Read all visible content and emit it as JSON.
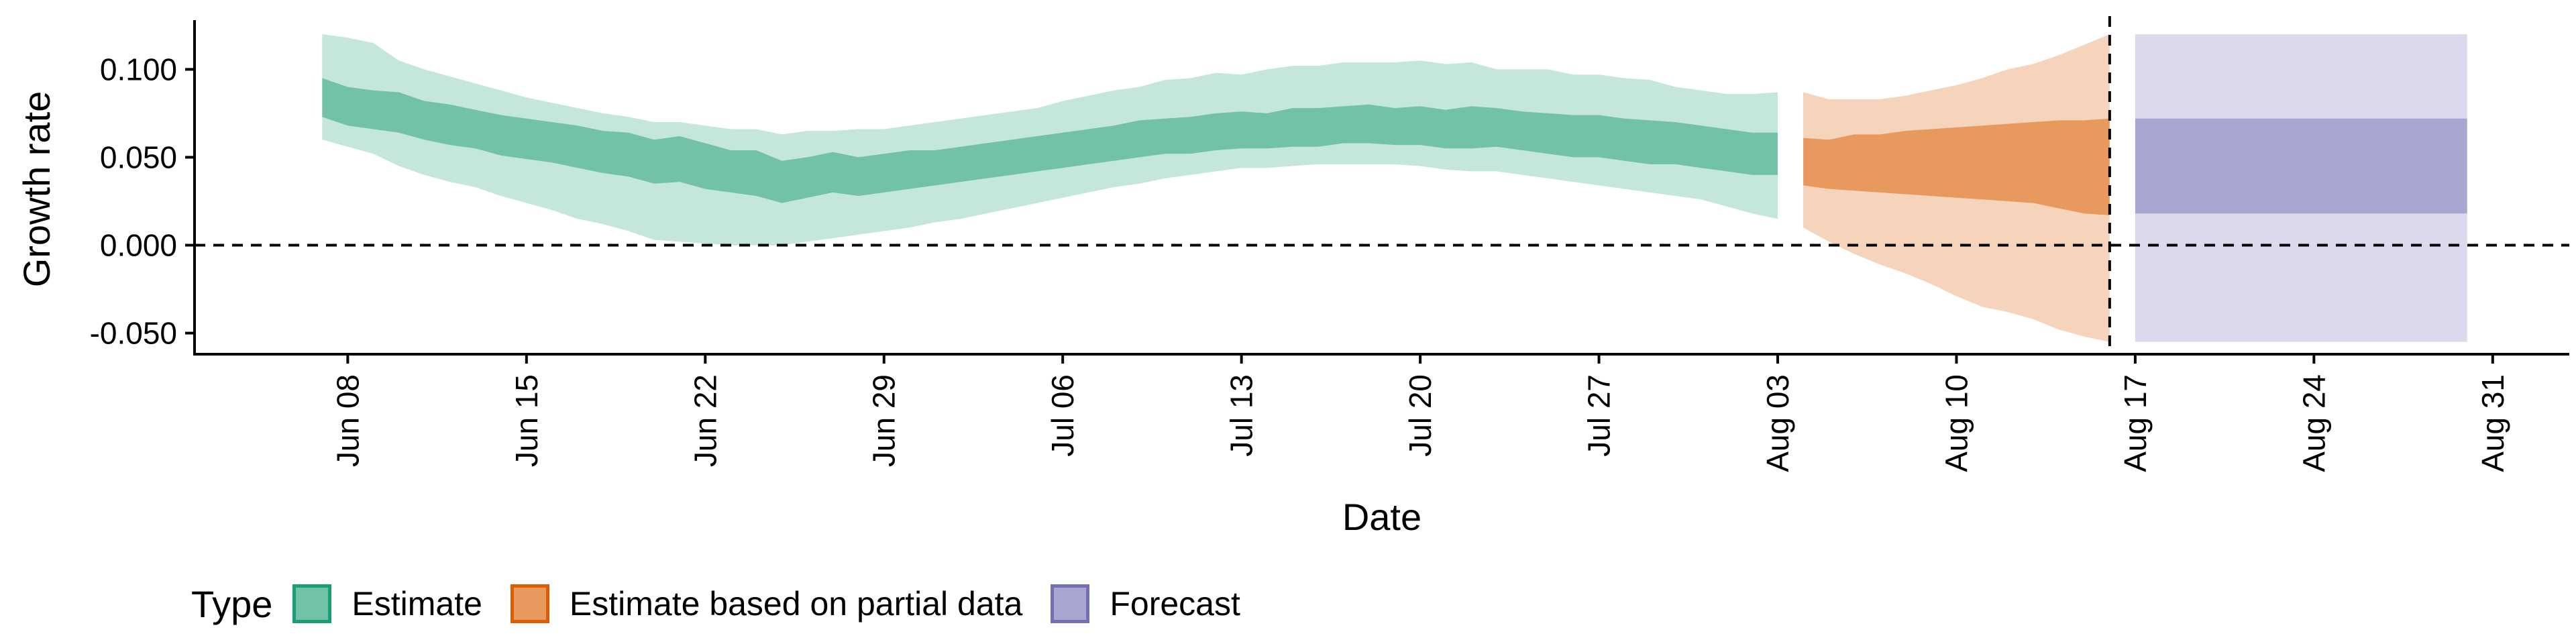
{
  "chart_data": {
    "type": "area",
    "xlabel": "Date",
    "ylabel": "Growth rate",
    "ylim": [
      -0.062,
      0.128
    ],
    "y_ticks": [
      "-0.050",
      "0.000",
      "0.050",
      "0.100"
    ],
    "y_tick_values": [
      -0.05,
      0.0,
      0.05,
      0.1
    ],
    "x_ticks": [
      "Jun 08",
      "Jun 15",
      "Jun 22",
      "Jun 29",
      "Jul 06",
      "Jul 13",
      "Jul 20",
      "Jul 27",
      "Aug 03",
      "Aug 10",
      "Aug 17",
      "Aug 24",
      "Aug 31"
    ],
    "x_tick_dates": [
      "2020-06-08",
      "2020-06-15",
      "2020-06-22",
      "2020-06-29",
      "2020-07-06",
      "2020-07-13",
      "2020-07-20",
      "2020-07-27",
      "2020-08-03",
      "2020-08-10",
      "2020-08-17",
      "2020-08-24",
      "2020-08-31"
    ],
    "xlim": [
      "2020-06-02",
      "2020-09-03"
    ],
    "hlines": [
      0
    ],
    "vlines": [
      "2020-08-16"
    ],
    "legend": {
      "title": "Type",
      "position": "bottom"
    },
    "series": [
      {
        "name": "Estimate",
        "color": "#1b9e77",
        "fill_inner": "#72c2a8",
        "fill_outer": "#c5e6dc",
        "x": [
          "2020-06-07",
          "2020-06-08",
          "2020-06-09",
          "2020-06-10",
          "2020-06-11",
          "2020-06-12",
          "2020-06-13",
          "2020-06-14",
          "2020-06-15",
          "2020-06-16",
          "2020-06-17",
          "2020-06-18",
          "2020-06-19",
          "2020-06-20",
          "2020-06-21",
          "2020-06-22",
          "2020-06-23",
          "2020-06-24",
          "2020-06-25",
          "2020-06-26",
          "2020-06-27",
          "2020-06-28",
          "2020-06-29",
          "2020-06-30",
          "2020-07-01",
          "2020-07-02",
          "2020-07-03",
          "2020-07-04",
          "2020-07-05",
          "2020-07-06",
          "2020-07-07",
          "2020-07-08",
          "2020-07-09",
          "2020-07-10",
          "2020-07-11",
          "2020-07-12",
          "2020-07-13",
          "2020-07-14",
          "2020-07-15",
          "2020-07-16",
          "2020-07-17",
          "2020-07-18",
          "2020-07-19",
          "2020-07-20",
          "2020-07-21",
          "2020-07-22",
          "2020-07-23",
          "2020-07-24",
          "2020-07-25",
          "2020-07-26",
          "2020-07-27",
          "2020-07-28",
          "2020-07-29",
          "2020-07-30",
          "2020-07-31",
          "2020-08-01",
          "2020-08-02",
          "2020-08-03"
        ],
        "upper_90": [
          0.12,
          0.118,
          0.115,
          0.105,
          0.1,
          0.096,
          0.092,
          0.088,
          0.084,
          0.081,
          0.078,
          0.075,
          0.073,
          0.07,
          0.07,
          0.068,
          0.066,
          0.066,
          0.063,
          0.065,
          0.065,
          0.066,
          0.066,
          0.068,
          0.07,
          0.072,
          0.074,
          0.076,
          0.078,
          0.082,
          0.085,
          0.088,
          0.09,
          0.094,
          0.095,
          0.098,
          0.097,
          0.1,
          0.102,
          0.102,
          0.104,
          0.104,
          0.104,
          0.105,
          0.103,
          0.104,
          0.1,
          0.1,
          0.1,
          0.097,
          0.097,
          0.095,
          0.094,
          0.09,
          0.088,
          0.086,
          0.086,
          0.087
        ],
        "upper_50": [
          0.095,
          0.09,
          0.088,
          0.087,
          0.082,
          0.08,
          0.077,
          0.074,
          0.072,
          0.07,
          0.068,
          0.065,
          0.064,
          0.06,
          0.062,
          0.058,
          0.054,
          0.054,
          0.048,
          0.05,
          0.053,
          0.05,
          0.052,
          0.054,
          0.054,
          0.056,
          0.058,
          0.06,
          0.062,
          0.064,
          0.066,
          0.068,
          0.071,
          0.072,
          0.073,
          0.075,
          0.076,
          0.075,
          0.078,
          0.078,
          0.079,
          0.08,
          0.078,
          0.079,
          0.077,
          0.079,
          0.078,
          0.076,
          0.075,
          0.074,
          0.074,
          0.072,
          0.071,
          0.07,
          0.068,
          0.066,
          0.064,
          0.064
        ],
        "lower_50": [
          0.073,
          0.068,
          0.066,
          0.064,
          0.06,
          0.057,
          0.055,
          0.051,
          0.049,
          0.047,
          0.044,
          0.041,
          0.039,
          0.035,
          0.036,
          0.032,
          0.03,
          0.028,
          0.024,
          0.027,
          0.03,
          0.028,
          0.03,
          0.032,
          0.034,
          0.036,
          0.038,
          0.04,
          0.042,
          0.044,
          0.046,
          0.048,
          0.05,
          0.052,
          0.052,
          0.054,
          0.055,
          0.055,
          0.056,
          0.056,
          0.058,
          0.058,
          0.057,
          0.057,
          0.055,
          0.055,
          0.056,
          0.054,
          0.052,
          0.05,
          0.05,
          0.048,
          0.046,
          0.046,
          0.044,
          0.042,
          0.04,
          0.04
        ],
        "lower_90": [
          0.06,
          0.056,
          0.052,
          0.045,
          0.04,
          0.036,
          0.033,
          0.028,
          0.024,
          0.02,
          0.015,
          0.012,
          0.008,
          0.003,
          0.002,
          0.001,
          0.0,
          0.0,
          0.0,
          0.002,
          0.004,
          0.006,
          0.008,
          0.01,
          0.013,
          0.015,
          0.018,
          0.021,
          0.024,
          0.027,
          0.03,
          0.033,
          0.035,
          0.038,
          0.04,
          0.042,
          0.044,
          0.044,
          0.045,
          0.046,
          0.046,
          0.046,
          0.046,
          0.045,
          0.043,
          0.042,
          0.042,
          0.04,
          0.038,
          0.036,
          0.034,
          0.032,
          0.03,
          0.028,
          0.026,
          0.022,
          0.018,
          0.015
        ]
      },
      {
        "name": "Estimate based on partial data",
        "color": "#d95f02",
        "fill_inner": "#e89a5e",
        "fill_outer": "#f6d4bc",
        "x": [
          "2020-08-04",
          "2020-08-05",
          "2020-08-06",
          "2020-08-07",
          "2020-08-08",
          "2020-08-09",
          "2020-08-10",
          "2020-08-11",
          "2020-08-12",
          "2020-08-13",
          "2020-08-14",
          "2020-08-15",
          "2020-08-16"
        ],
        "upper_90": [
          0.087,
          0.083,
          0.083,
          0.083,
          0.085,
          0.088,
          0.091,
          0.095,
          0.1,
          0.103,
          0.108,
          0.114,
          0.12
        ],
        "upper_50": [
          0.061,
          0.06,
          0.063,
          0.063,
          0.065,
          0.066,
          0.067,
          0.068,
          0.069,
          0.07,
          0.071,
          0.071,
          0.072
        ],
        "lower_50": [
          0.034,
          0.032,
          0.031,
          0.03,
          0.029,
          0.028,
          0.027,
          0.026,
          0.025,
          0.024,
          0.021,
          0.018,
          0.017
        ],
        "lower_90": [
          0.01,
          0.002,
          -0.005,
          -0.011,
          -0.016,
          -0.022,
          -0.029,
          -0.035,
          -0.038,
          -0.042,
          -0.048,
          -0.052,
          -0.055
        ]
      },
      {
        "name": "Forecast",
        "color": "#7570b3",
        "fill_inner": "#a9a6d1",
        "fill_outer": "#dbdaed",
        "x": [
          "2020-08-17",
          "2020-08-30"
        ],
        "upper_90": [
          0.12,
          0.12
        ],
        "upper_50": [
          0.072,
          0.072
        ],
        "lower_50": [
          0.018,
          0.018
        ],
        "lower_90": [
          -0.055,
          -0.055
        ]
      }
    ]
  }
}
